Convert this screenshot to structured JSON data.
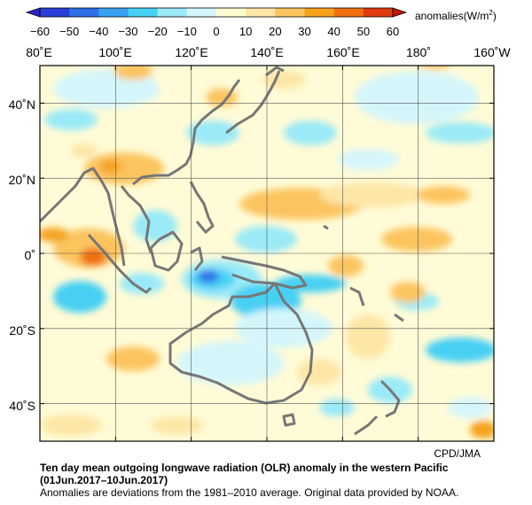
{
  "colorbar": {
    "ticks": [
      "−60",
      "−50",
      "−40",
      "−30",
      "−20",
      "−10",
      "0",
      "10",
      "20",
      "30",
      "40",
      "50",
      "60"
    ],
    "units_main": "anomalies(W/m",
    "units_sup": "2",
    "units_end": ")",
    "colors": [
      "#2a3fd6",
      "#2f6fe8",
      "#3aa0f0",
      "#46d0f4",
      "#9aeaf8",
      "#d4f6fb",
      "#fffbd0",
      "#fde6a6",
      "#fcc45e",
      "#f4a21a",
      "#f07010",
      "#e03a10"
    ]
  },
  "map": {
    "lon_labels": [
      "80˚E",
      "100˚E",
      "120˚E",
      "140˚E",
      "160˚E",
      "180˚",
      "160˚W"
    ],
    "lat_labels": [
      "40˚N",
      "20˚N",
      "0˚",
      "20˚S",
      "40˚S"
    ],
    "lat_range": [
      -50,
      50
    ],
    "lon_range": [
      80,
      200
    ],
    "grid_step_deg": 20,
    "coast_color": "#777777",
    "credit": "CPD/JMA"
  },
  "caption": {
    "title": "Ten day mean outgoing longwave radiation (OLR) anomaly in the western Pacific",
    "period": "(01Jun.2017–10Jun.2017)",
    "note": "Anomalies are deviations from the 1981–2010 average. Original data provided by NOAA."
  }
}
